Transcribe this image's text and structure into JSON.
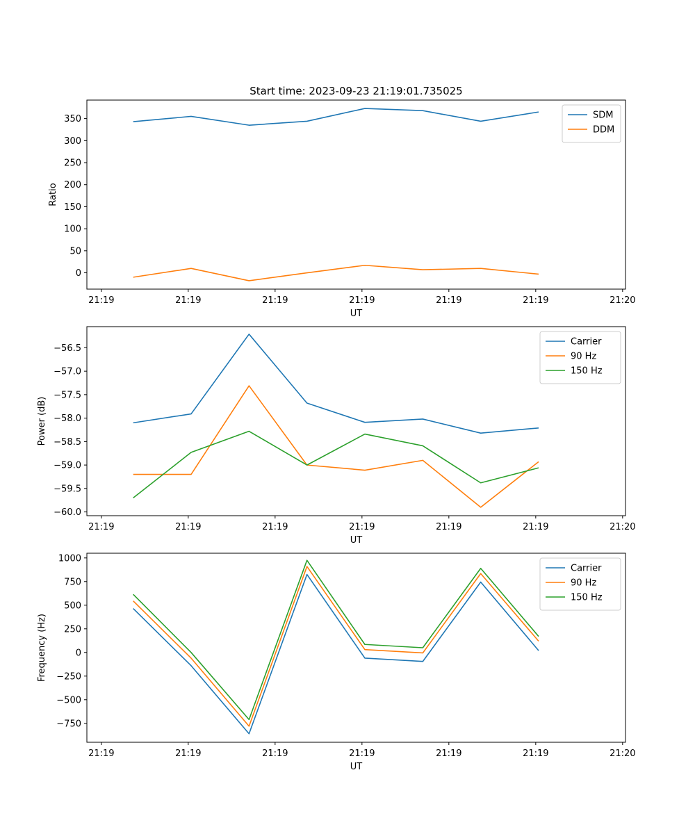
{
  "chart_data": [
    {
      "type": "line",
      "title": "Start time: 2023-09-23 21:19:01.735025",
      "xlabel": "UT",
      "ylabel": "Ratio",
      "x": [
        1,
        2,
        3,
        4,
        5,
        6,
        7,
        8
      ],
      "xlim": [
        0.2,
        9.5
      ],
      "xticks": [
        0.45,
        1.95,
        3.45,
        4.95,
        6.45,
        7.95,
        9.45
      ],
      "xtick_labels": [
        "21:19",
        "21:19",
        "21:19",
        "21:19",
        "21:19",
        "21:19",
        "21:20"
      ],
      "ylim": [
        -37,
        392
      ],
      "yticks": [
        0,
        50,
        100,
        150,
        200,
        250,
        300,
        350
      ],
      "ytick_labels": [
        "0",
        "50",
        "100",
        "150",
        "200",
        "250",
        "300",
        "350"
      ],
      "legend": "top-right",
      "series": [
        {
          "name": "SDM",
          "color": "#1f77b4",
          "values": [
            343,
            355,
            335,
            344,
            373,
            368,
            344,
            365
          ]
        },
        {
          "name": "DDM",
          "color": "#ff7f0e",
          "values": [
            -10,
            10,
            -18,
            0,
            17,
            7,
            10,
            -3
          ]
        }
      ]
    },
    {
      "type": "line",
      "title": "",
      "xlabel": "UT",
      "ylabel": "Power (dB)",
      "x": [
        1,
        2,
        3,
        4,
        5,
        6,
        7,
        8
      ],
      "xlim": [
        0.2,
        9.5
      ],
      "xticks": [
        0.45,
        1.95,
        3.45,
        4.95,
        6.45,
        7.95,
        9.45
      ],
      "xtick_labels": [
        "21:19",
        "21:19",
        "21:19",
        "21:19",
        "21:19",
        "21:19",
        "21:20"
      ],
      "ylim": [
        -60.08,
        -56.05
      ],
      "yticks": [
        -60.0,
        -59.5,
        -59.0,
        -58.5,
        -58.0,
        -57.5,
        -57.0,
        -56.5
      ],
      "ytick_labels": [
        "−60.0",
        "−59.5",
        "−59.0",
        "−58.5",
        "−58.0",
        "−57.5",
        "−57.0",
        "−56.5"
      ],
      "legend": "top-right",
      "series": [
        {
          "name": "Carrier",
          "color": "#1f77b4",
          "values": [
            -58.1,
            -57.91,
            -56.21,
            -57.68,
            -58.09,
            -58.02,
            -58.32,
            -58.21
          ]
        },
        {
          "name": "90 Hz",
          "color": "#ff7f0e",
          "values": [
            -59.2,
            -59.2,
            -57.31,
            -59.0,
            -59.11,
            -58.9,
            -59.9,
            -58.93
          ]
        },
        {
          "name": "150 Hz",
          "color": "#2ca02c",
          "values": [
            -59.7,
            -58.73,
            -58.28,
            -59.0,
            -58.34,
            -58.59,
            -59.38,
            -59.06
          ]
        }
      ]
    },
    {
      "type": "line",
      "title": "",
      "xlabel": "UT",
      "ylabel": "Frequency (Hz)",
      "x": [
        1,
        2,
        3,
        4,
        5,
        6,
        7,
        8
      ],
      "xlim": [
        0.2,
        9.5
      ],
      "xticks": [
        0.45,
        1.95,
        3.45,
        4.95,
        6.45,
        7.95,
        9.45
      ],
      "xtick_labels": [
        "21:19",
        "21:19",
        "21:19",
        "21:19",
        "21:19",
        "21:19",
        "21:20"
      ],
      "ylim": [
        -950,
        1050
      ],
      "yticks": [
        -750,
        -500,
        -250,
        0,
        250,
        500,
        750,
        1000
      ],
      "ytick_labels": [
        "−750",
        "−500",
        "−250",
        "0",
        "250",
        "500",
        "750",
        "1000"
      ],
      "legend": "top-right",
      "series": [
        {
          "name": "Carrier",
          "color": "#1f77b4",
          "values": [
            465,
            -140,
            -860,
            825,
            -60,
            -95,
            745,
            20
          ]
        },
        {
          "name": "90 Hz",
          "color": "#ff7f0e",
          "values": [
            545,
            -60,
            -780,
            910,
            30,
            -5,
            835,
            120
          ]
        },
        {
          "name": "150 Hz",
          "color": "#2ca02c",
          "values": [
            615,
            0,
            -710,
            975,
            85,
            50,
            890,
            170
          ]
        }
      ]
    }
  ]
}
